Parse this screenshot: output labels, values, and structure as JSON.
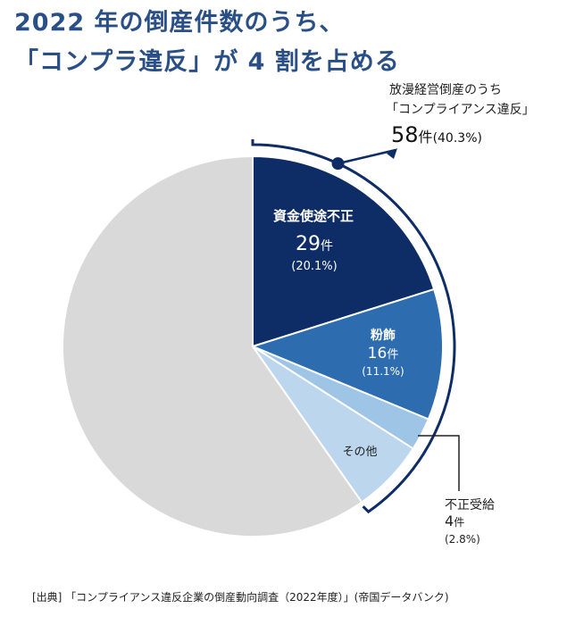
{
  "title_lines": [
    "2022 年の倒産件数のうち、",
    "「コンプラ違反」が 4 割を占める"
  ],
  "chart_data": {
    "type": "pie",
    "total_label": {
      "line1": "放漫経営倒産のうち",
      "line2": "「コンプライアンス違反」",
      "count": "58",
      "unit": "件",
      "pct": "(40.3%)",
      "value": 58,
      "percent": 40.3
    },
    "slices": [
      {
        "name": "資金使途不正",
        "value": 29,
        "count_label": "29",
        "unit": "件",
        "pct_label": "(20.1%)",
        "percent": 20.1,
        "color": "#0e2d66"
      },
      {
        "name": "粉飾",
        "value": 16,
        "count_label": "16",
        "unit": "件",
        "pct_label": "(11.1%)",
        "percent": 11.1,
        "color": "#2e6cb0"
      },
      {
        "name": "不正受給",
        "value": 4,
        "count_label": "4",
        "unit": "件",
        "pct_label": "(2.8%)",
        "percent": 2.8,
        "color": "#9ec4e6"
      },
      {
        "name": "その他",
        "value": 9,
        "percent": 6.3,
        "color": "#bcd6ee"
      },
      {
        "name": "",
        "value": 86,
        "percent": 59.7,
        "color": "#d9d9d9"
      }
    ]
  },
  "source": "[出典] 「コンプライアンス違反企業の倒産動向調査（2022年度）」(帝国データバンク)",
  "colors": {
    "title": "#2a4f86",
    "accent": "#0e2d66"
  }
}
